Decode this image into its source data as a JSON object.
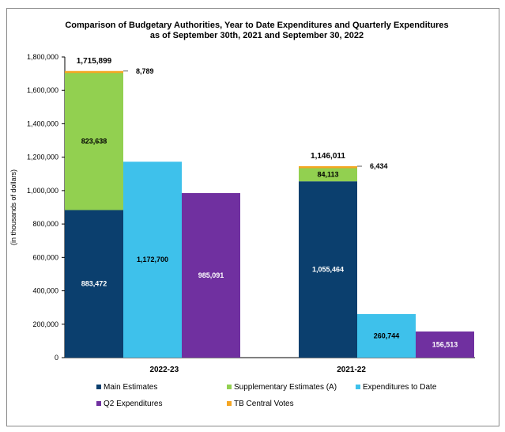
{
  "chart_data": {
    "type": "bar",
    "stacked": true,
    "title": "Comparison of Budgetary Authorities, Year to Date Expenditures and Quarterly Expenditures",
    "subtitle": "as of September 30th, 2021 and September 30, 2022",
    "ylabel": "(in thousands of dollars)",
    "ylim": [
      0,
      1800000
    ],
    "yticks": [
      "0",
      "200,000",
      "400,000",
      "600,000",
      "800,000",
      "1,000,000",
      "1,200,000",
      "1,400,000",
      "1,600,000",
      "1,800,000"
    ],
    "grid": false,
    "legend_position": "bottom",
    "categories": [
      "2022-23",
      "2021-22"
    ],
    "groups": [
      {
        "category": "2022-23",
        "total_label": "1,715,899",
        "authorities": [
          {
            "series": "Main Estimates",
            "value": 883472,
            "label": "883,472"
          },
          {
            "series": "Supplementary Estimates (A)",
            "value": 823638,
            "label": "823,638"
          },
          {
            "series": "TB Central Votes",
            "value": 8789,
            "label": "8,789"
          }
        ],
        "expenditures_to_date": {
          "value": 1172700,
          "label": "1,172,700"
        },
        "q2_expenditures": {
          "value": 985091,
          "label": "985,091"
        }
      },
      {
        "category": "2021-22",
        "total_label": "1,146,011",
        "authorities": [
          {
            "series": "Main Estimates",
            "value": 1055464,
            "label": "1,055,464"
          },
          {
            "series": "Supplementary Estimates (A)",
            "value": 84113,
            "label": "84,113"
          },
          {
            "series": "TB Central Votes",
            "value": 6434,
            "label": "6,434"
          }
        ],
        "expenditures_to_date": {
          "value": 260744,
          "label": "260,744"
        },
        "q2_expenditures": {
          "value": 156513,
          "label": "156,513"
        }
      }
    ],
    "legend": [
      {
        "name": "Main Estimates",
        "color": "#0B3F6E"
      },
      {
        "name": "Supplementary Estimates (A)",
        "color": "#92D050"
      },
      {
        "name": "Expenditures to Date",
        "color": "#3EC1EB"
      },
      {
        "name": "Q2 Expenditures",
        "color": "#7030A0"
      },
      {
        "name": "TB Central Votes",
        "color": "#F5A623"
      }
    ]
  }
}
